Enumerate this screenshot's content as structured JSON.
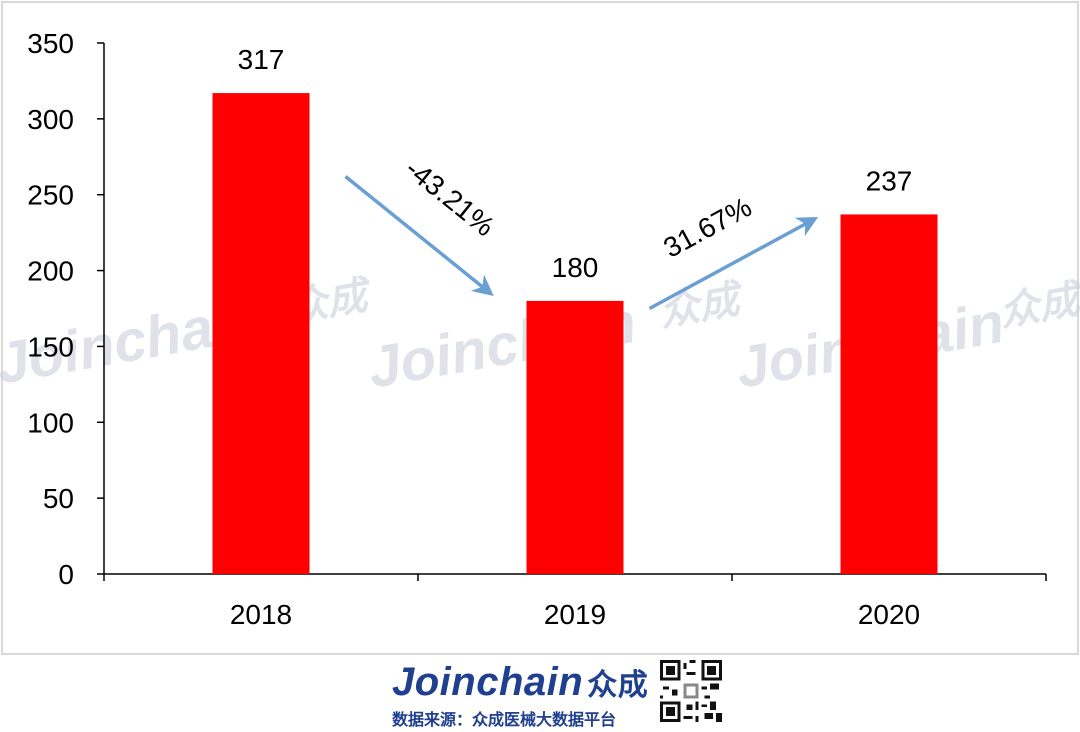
{
  "chart_data": {
    "type": "bar",
    "categories": [
      "2018",
      "2019",
      "2020"
    ],
    "values": [
      317,
      180,
      237
    ],
    "data_labels": [
      "317",
      "180",
      "237"
    ],
    "ylim": [
      0,
      350
    ],
    "yticks": [
      0,
      50,
      100,
      150,
      200,
      250,
      300,
      350
    ],
    "bar_color": "#ff0000",
    "grid": false,
    "legend": "none",
    "annotations": [
      {
        "text": "-43.21%",
        "from_category": "2018",
        "to_category": "2019"
      },
      {
        "text": "31.67%",
        "from_category": "2019",
        "to_category": "2020"
      }
    ],
    "arrow_color": "#6a9fd4"
  },
  "watermark": {
    "text": "Joinchain",
    "text_cn": "众成"
  },
  "footer": {
    "brand": "Joinchain",
    "brand_cn": "众成",
    "source": "数据来源：众成医械大数据平台",
    "qr_icon": "qr-code-icon"
  }
}
